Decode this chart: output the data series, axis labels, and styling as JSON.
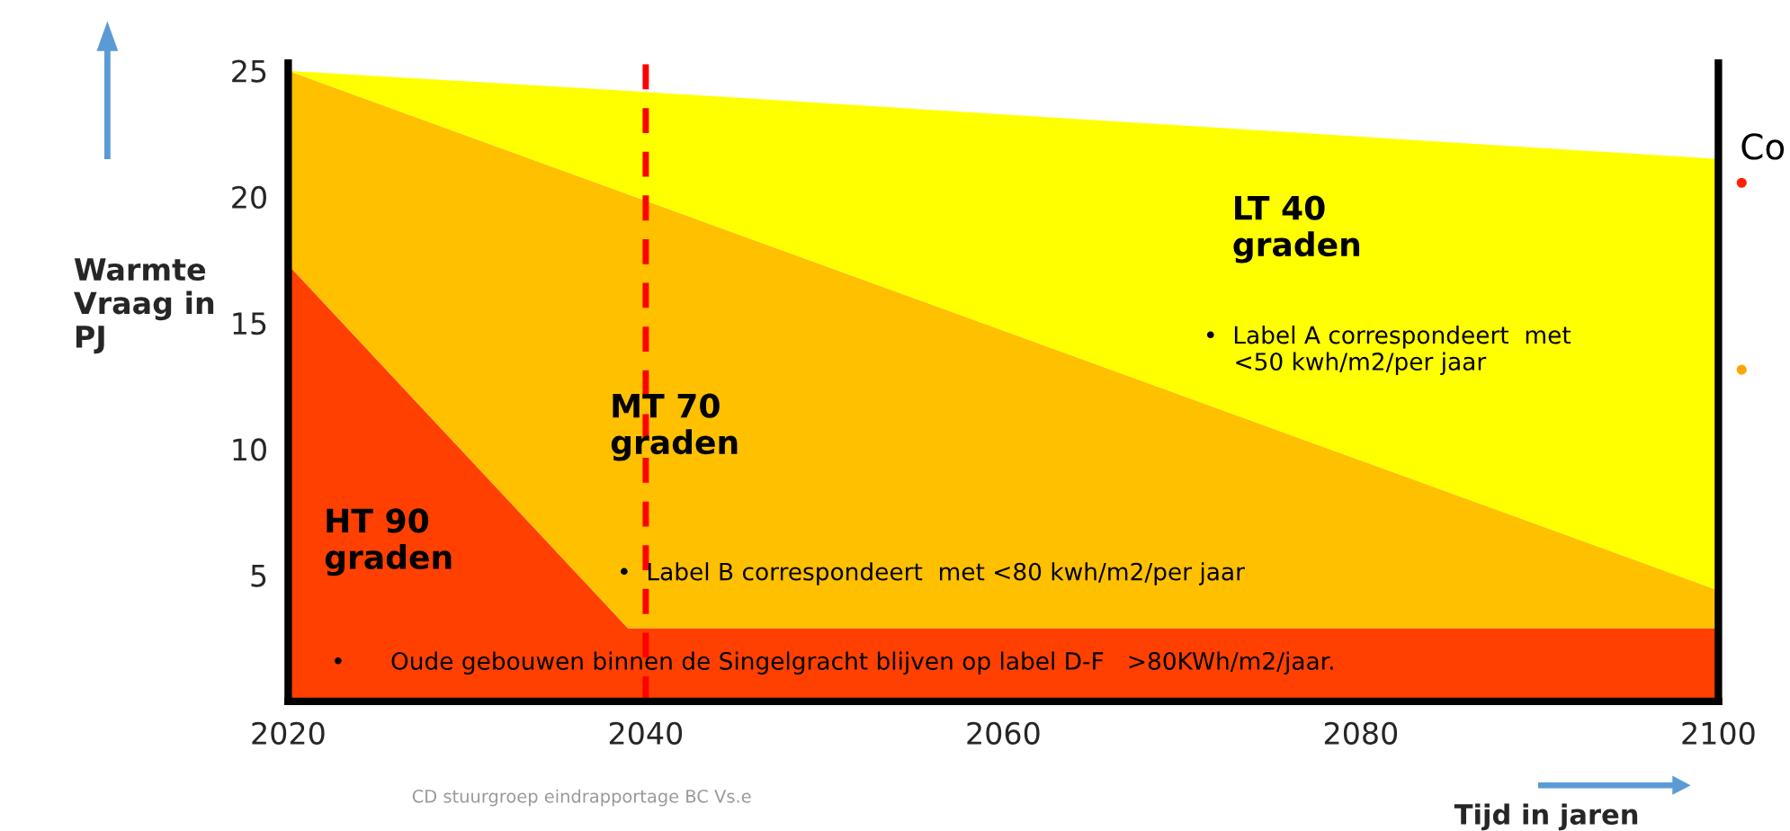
{
  "chart_data": {
    "type": "area",
    "stacked": true,
    "xlabel": "Tijd in jaren",
    "ylabel": "Warmte\nVraag in\nPJ",
    "xlim": [
      2020,
      2100
    ],
    "ylim": [
      0,
      25.3
    ],
    "xticks": [
      2020,
      2040,
      2060,
      2080,
      2100
    ],
    "yticks": [
      5,
      10,
      15,
      20,
      25
    ],
    "grid": false,
    "x": [
      2020,
      2039,
      2100
    ],
    "series": [
      {
        "values": [
          17.3,
          2.9,
          2.9
        ],
        "color": "#ff4000"
      },
      {
        "values": [
          7.7,
          17.2,
          1.5
        ],
        "color": "#ffc000"
      },
      {
        "values": [
          0,
          4.1,
          17.1
        ],
        "color": "#ffff00"
      }
    ],
    "ref_lines": [
      {
        "axis": "x",
        "value": 2040,
        "color": "#ff0000",
        "line_style": "dashed"
      }
    ],
    "annotations": [
      "LT 40\ngraden",
      "MT 70\ngraden",
      "HT 90\ngraden",
      "•  Label A correspondeert  met\n    <50 kwh/m2/per jaar",
      "•  Label B correspondeert  met <80 kwh/m2/per jaar",
      "•      Oude gebouwen binnen de Singelgracht blijven op label D-F   >80KWh/m2/jaar.",
      "CD stuurgroep eindrapportage BC Vs.e",
      "Co"
    ]
  }
}
